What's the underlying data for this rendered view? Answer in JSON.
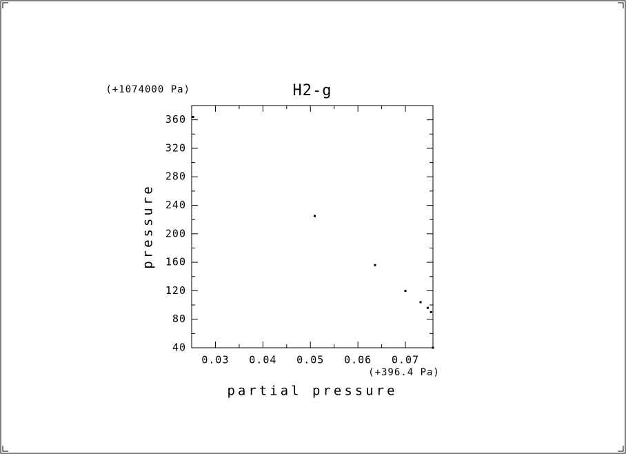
{
  "chart_data": {
    "type": "scatter",
    "title": "H2-g",
    "xlabel": "partial pressure",
    "ylabel": "pressure",
    "x_offset_label": "(+396.4 Pa)",
    "y_offset_label": "(+1074000 Pa)",
    "color": "#000000",
    "x": [
      0.0253,
      0.0509,
      0.0636,
      0.07,
      0.0732,
      0.0747,
      0.0754,
      0.0758
    ],
    "values": [
      364,
      225,
      156,
      120,
      104,
      96,
      90,
      40
    ],
    "xlim": [
      0.025,
      0.0758
    ],
    "ylim": [
      40,
      380
    ],
    "xticks": [
      0.03,
      0.04,
      0.05,
      0.06,
      0.07
    ],
    "yticks": [
      40,
      80,
      120,
      160,
      200,
      240,
      280,
      320,
      360
    ]
  }
}
